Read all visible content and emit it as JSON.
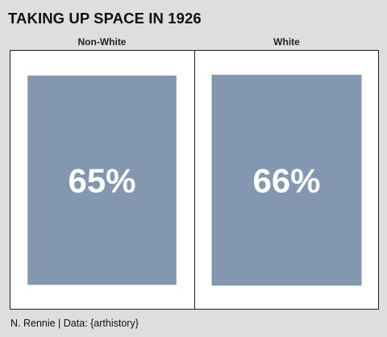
{
  "title": "TAKING UP SPACE IN 1926",
  "caption": "N. Rennie | Data: {arthistory}",
  "colors": {
    "background": "#dedede",
    "panel": "#ffffff",
    "fill": "#8497b0",
    "border": "#222222",
    "label_text": "#ffffff",
    "strip_text": "#222222"
  },
  "chart_data": {
    "type": "bar",
    "categories": [
      "Non-White",
      "White"
    ],
    "values": [
      65,
      66
    ],
    "value_labels": [
      "65%",
      "66%"
    ],
    "facet_labels": [
      "Non-White",
      "White"
    ],
    "title": "TAKING UP SPACE IN 1926",
    "caption": "N. Rennie | Data: {arthistory}",
    "unit": "%",
    "encoding": "area of rectangle within panel represents share of space",
    "grid": false,
    "legend": "none"
  }
}
